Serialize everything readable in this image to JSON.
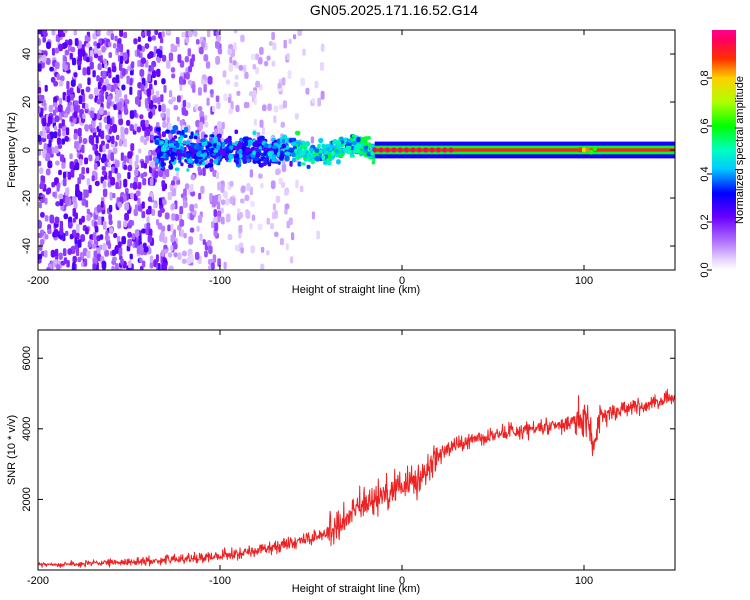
{
  "title": "GN05.2025.171.16.52.G14",
  "chart_data": [
    {
      "type": "heatmap",
      "xlabel": "Height of straight line (km)",
      "ylabel": "Frequency (Hz)",
      "xlim": [
        -200,
        150
      ],
      "ylim": [
        -50,
        50
      ],
      "xticks": [
        -200,
        -100,
        0,
        100
      ],
      "yticks": [
        -40,
        -20,
        0,
        20,
        40
      ],
      "colorbar": {
        "label": "Normalized spectral amplitude",
        "range": [
          0,
          1
        ],
        "ticks": [
          "0.0",
          "0.2",
          "0.4",
          "0.6",
          "0.8"
        ],
        "colormap": "rainbow (white-violet-blue-cyan-green-yellow-red-magenta)"
      },
      "features": [
        {
          "segment": "noise",
          "x_range": [
            -200,
            -130
          ],
          "freq_spread_hz": 50,
          "amplitude": 0.2
        },
        {
          "segment": "transition",
          "x_range": [
            -130,
            -15
          ],
          "freq_spread_hz": 5,
          "amplitude": 0.45
        },
        {
          "segment": "steady tone",
          "x_range": [
            -15,
            150
          ],
          "freq_hz": 0,
          "amplitude": 0.95
        }
      ]
    },
    {
      "type": "line",
      "xlabel": "Height of straight line (km)",
      "ylabel": "SNR (10 * v/v)",
      "xlim": [
        -200,
        150
      ],
      "ylim": [
        0,
        6800
      ],
      "xticks": [
        -200,
        -100,
        0,
        100
      ],
      "yticks": [
        2000,
        4000,
        6000
      ],
      "color": "#ee2222",
      "series": [
        {
          "x": [
            -200,
            -180,
            -160,
            -140,
            -120,
            -100,
            -90,
            -80,
            -70,
            -60,
            -50,
            -40,
            -35,
            -30,
            -25,
            -20,
            -15,
            -10,
            -5,
            0,
            5,
            10,
            15,
            20,
            25,
            30,
            40,
            50,
            60,
            70,
            80,
            90,
            95,
            100,
            102,
            105,
            110,
            120,
            130,
            140,
            150
          ],
          "y": [
            150,
            170,
            200,
            250,
            320,
            400,
            470,
            550,
            660,
            780,
            900,
            1050,
            1250,
            1500,
            1700,
            1850,
            2000,
            2150,
            2300,
            2400,
            2500,
            2650,
            2900,
            3200,
            3450,
            3550,
            3700,
            3820,
            3920,
            4000,
            4080,
            4150,
            4250,
            4200,
            4500,
            3600,
            4400,
            4550,
            4650,
            4750,
            4900
          ]
        }
      ]
    }
  ]
}
